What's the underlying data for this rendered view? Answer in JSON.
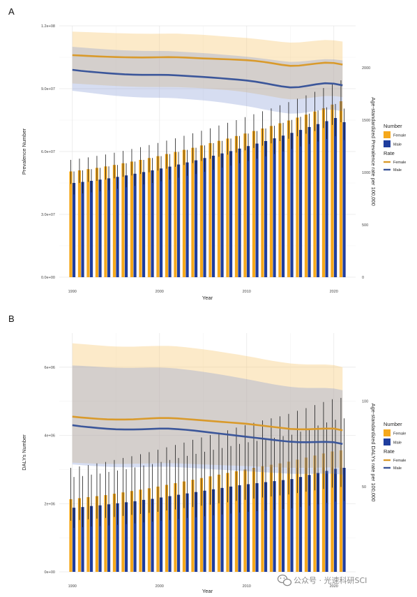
{
  "watermark": {
    "text": "公众号 · 光速科研SCI",
    "icon": "wechat-icon"
  },
  "colors": {
    "female_bar": "#F5A81C",
    "male_bar": "#1F3E9E",
    "female_line": "#D99A2B",
    "male_line": "#3B569A",
    "female_band": "#FCE3B0",
    "male_band": "#C9D3EC",
    "overlap_band": "#CFC6BC",
    "grid": "#E6E6E6",
    "errorbar": "#1A1A1A"
  },
  "chart_data": [
    {
      "panel": "A",
      "type": "bar+line",
      "xlabel": "Year",
      "ylabel": "Prevalence Number",
      "y2label": "Age-standardized Prevalence rate per 100,000",
      "x_ticks": [
        1990,
        2000,
        2010,
        2020
      ],
      "ylim": [
        0,
        120000000
      ],
      "y_ticks": [
        0,
        30000000,
        60000000,
        90000000,
        120000000
      ],
      "y_tick_labels": [
        "0.0e+00",
        "3.0e+07",
        "6.0e+07",
        "9.0e+07",
        "1.2e+08"
      ],
      "y2lim": [
        0,
        2400
      ],
      "y2_ticks": [
        0,
        500,
        1000,
        1500,
        2000
      ],
      "y2_tick_labels": [
        "0",
        "500",
        "1000",
        "1500",
        "2000"
      ],
      "years": [
        1990,
        1991,
        1992,
        1993,
        1994,
        1995,
        1996,
        1997,
        1998,
        1999,
        2000,
        2001,
        2002,
        2003,
        2004,
        2005,
        2006,
        2007,
        2008,
        2009,
        2010,
        2011,
        2012,
        2013,
        2014,
        2015,
        2016,
        2017,
        2018,
        2019,
        2020,
        2021
      ],
      "bars": [
        {
          "name": "Female",
          "values": [
            50500000,
            51000000,
            51600000,
            52200000,
            52900000,
            53600000,
            54400000,
            55200000,
            56000000,
            56900000,
            57800000,
            58800000,
            59800000,
            60800000,
            61800000,
            62900000,
            64000000,
            65100000,
            66200000,
            67400000,
            68600000,
            69800000,
            71000000,
            72200000,
            73500000,
            74800000,
            76200000,
            77600000,
            79100000,
            80700000,
            82400000,
            84000000
          ],
          "lower": [
            44500000,
            45000000,
            45500000,
            46000000,
            46600000,
            47200000,
            47900000,
            48600000,
            49300000,
            50100000,
            50900000,
            51800000,
            52700000,
            53600000,
            54500000,
            55500000,
            56500000,
            57500000,
            58500000,
            59500000,
            60600000,
            61700000,
            62800000,
            63900000,
            65000000,
            66100000,
            67300000,
            68500000,
            69800000,
            71200000,
            72700000,
            74000000
          ],
          "upper": [
            56000000,
            56600000,
            57200000,
            57900000,
            58600000,
            59400000,
            60300000,
            61200000,
            62100000,
            63100000,
            64100000,
            65200000,
            66300000,
            67500000,
            68700000,
            69900000,
            71100000,
            72400000,
            73700000,
            75000000,
            76400000,
            77800000,
            79200000,
            80600000,
            82100000,
            83600000,
            85200000,
            86800000,
            88500000,
            90300000,
            92200000,
            94000000
          ]
        },
        {
          "name": "Male",
          "values": [
            45000000,
            45500000,
            46000000,
            46600000,
            47200000,
            47900000,
            48600000,
            49400000,
            50200000,
            51000000,
            51900000,
            52800000,
            53800000,
            54800000,
            55800000,
            56900000,
            58000000,
            59100000,
            60200000,
            61400000,
            62600000,
            63800000,
            65000000,
            66300000,
            67600000,
            68900000,
            70300000,
            71700000,
            73100000,
            74500000,
            76000000,
            74000000
          ],
          "lower": [
            39500000,
            40000000,
            40500000,
            41000000,
            41600000,
            42200000,
            42900000,
            43600000,
            44300000,
            45000000,
            45800000,
            46600000,
            47500000,
            48400000,
            49300000,
            50300000,
            51300000,
            52300000,
            53300000,
            54400000,
            55500000,
            56600000,
            57700000,
            58800000,
            60000000,
            61200000,
            62400000,
            63600000,
            64800000,
            66000000,
            67300000,
            65500000
          ],
          "upper": [
            50500000,
            51000000,
            51600000,
            52200000,
            52900000,
            53600000,
            54400000,
            55200000,
            56000000,
            56900000,
            57800000,
            58800000,
            59800000,
            60800000,
            61800000,
            62900000,
            64000000,
            65100000,
            66200000,
            67400000,
            68600000,
            69800000,
            71000000,
            72300000,
            73700000,
            75100000,
            76600000,
            78100000,
            79600000,
            81100000,
            82700000,
            80500000
          ]
        }
      ],
      "lines": [
        {
          "name": "Female",
          "values": [
            2120,
            2116,
            2112,
            2108,
            2105,
            2102,
            2100,
            2099,
            2098,
            2099,
            2100,
            2101,
            2100,
            2097,
            2093,
            2089,
            2086,
            2083,
            2080,
            2076,
            2072,
            2065,
            2055,
            2042,
            2028,
            2018,
            2020,
            2030,
            2040,
            2048,
            2045,
            2030
          ],
          "lower": [
            1850,
            1845,
            1840,
            1835,
            1830,
            1826,
            1822,
            1819,
            1817,
            1816,
            1816,
            1816,
            1815,
            1812,
            1808,
            1803,
            1797,
            1791,
            1785,
            1776,
            1765,
            1752,
            1738,
            1723,
            1708,
            1698,
            1700,
            1710,
            1720,
            1730,
            1730,
            1720
          ],
          "upper": [
            2345,
            2342,
            2339,
            2336,
            2333,
            2330,
            2328,
            2326,
            2325,
            2324,
            2325,
            2326,
            2326,
            2322,
            2318,
            2314,
            2308,
            2302,
            2296,
            2290,
            2284,
            2276,
            2267,
            2257,
            2247,
            2240,
            2242,
            2250,
            2258,
            2265,
            2262,
            2250
          ]
        },
        {
          "name": "Male",
          "values": [
            1980,
            1970,
            1962,
            1955,
            1948,
            1942,
            1937,
            1934,
            1932,
            1932,
            1932,
            1931,
            1927,
            1922,
            1917,
            1912,
            1906,
            1900,
            1893,
            1886,
            1878,
            1867,
            1853,
            1837,
            1822,
            1812,
            1815,
            1828,
            1842,
            1852,
            1848,
            1832
          ],
          "lower": [
            1780,
            1770,
            1760,
            1750,
            1740,
            1732,
            1725,
            1720,
            1716,
            1714,
            1713,
            1712,
            1708,
            1702,
            1695,
            1688,
            1680,
            1670,
            1658,
            1646,
            1633,
            1618,
            1602,
            1586,
            1572,
            1562,
            1564,
            1575,
            1588,
            1600,
            1598,
            1585
          ],
          "upper": [
            2200,
            2193,
            2187,
            2181,
            2175,
            2170,
            2166,
            2163,
            2161,
            2160,
            2160,
            2159,
            2155,
            2150,
            2145,
            2140,
            2134,
            2127,
            2120,
            2113,
            2105,
            2096,
            2086,
            2075,
            2064,
            2056,
            2058,
            2066,
            2075,
            2082,
            2080,
            2070
          ]
        }
      ],
      "legend": {
        "number_title": "Number",
        "rate_title": "Rate",
        "labels": [
          "Female",
          "Male"
        ],
        "position": "right"
      }
    },
    {
      "panel": "B",
      "type": "bar+line",
      "xlabel": "Year",
      "ylabel": "DALYs Number",
      "y2label": "Age-standardized DALYs rate per 100,000",
      "x_ticks": [
        1990,
        2000,
        2010,
        2020
      ],
      "ylim": [
        0,
        7000000
      ],
      "y_ticks": [
        0,
        2000000,
        4000000,
        6000000
      ],
      "y_tick_labels": [
        "0e+00",
        "2e+06",
        "4e+06",
        "6e+06"
      ],
      "y2lim": [
        0,
        140
      ],
      "y2_ticks": [
        50,
        100
      ],
      "y2_tick_labels": [
        "50",
        "100"
      ],
      "years": [
        1990,
        1991,
        1992,
        1993,
        1994,
        1995,
        1996,
        1997,
        1998,
        1999,
        2000,
        2001,
        2002,
        2003,
        2004,
        2005,
        2006,
        2007,
        2008,
        2009,
        2010,
        2011,
        2012,
        2013,
        2014,
        2015,
        2016,
        2017,
        2018,
        2019,
        2020,
        2021
      ],
      "bars": [
        {
          "name": "Female",
          "values": [
            2130000,
            2160000,
            2190000,
            2220000,
            2250000,
            2290000,
            2330000,
            2370000,
            2410000,
            2450000,
            2500000,
            2550000,
            2600000,
            2650000,
            2700000,
            2750000,
            2800000,
            2850000,
            2900000,
            2950000,
            3000000,
            3050000,
            3100000,
            3140000,
            3180000,
            3230000,
            3290000,
            3350000,
            3410000,
            3470000,
            3530000,
            3560000
          ],
          "lower": [
            1500000,
            1520000,
            1540000,
            1560000,
            1580000,
            1610000,
            1640000,
            1670000,
            1700000,
            1730000,
            1760000,
            1800000,
            1830000,
            1870000,
            1900000,
            1940000,
            1970000,
            2010000,
            2040000,
            2080000,
            2110000,
            2150000,
            2180000,
            2210000,
            2240000,
            2270000,
            2310000,
            2350000,
            2390000,
            2430000,
            2470000,
            2490000
          ],
          "upper": [
            3050000,
            3090000,
            3130000,
            3180000,
            3220000,
            3280000,
            3340000,
            3390000,
            3450000,
            3510000,
            3580000,
            3650000,
            3720000,
            3790000,
            3870000,
            3940000,
            4010000,
            4080000,
            4150000,
            4230000,
            4300000,
            4370000,
            4440000,
            4500000,
            4560000,
            4630000,
            4720000,
            4800000,
            4890000,
            4980000,
            5060000,
            5100000
          ]
        },
        {
          "name": "Male",
          "values": [
            1880000,
            1900000,
            1930000,
            1950000,
            1980000,
            2010000,
            2040000,
            2070000,
            2110000,
            2140000,
            2180000,
            2220000,
            2260000,
            2300000,
            2340000,
            2380000,
            2420000,
            2460000,
            2500000,
            2540000,
            2570000,
            2600000,
            2630000,
            2660000,
            2690000,
            2720000,
            2780000,
            2840000,
            2900000,
            2960000,
            3020000,
            3050000
          ],
          "lower": [
            1290000,
            1310000,
            1330000,
            1340000,
            1360000,
            1380000,
            1400000,
            1420000,
            1450000,
            1470000,
            1500000,
            1520000,
            1550000,
            1580000,
            1600000,
            1630000,
            1660000,
            1680000,
            1710000,
            1740000,
            1760000,
            1780000,
            1800000,
            1820000,
            1840000,
            1860000,
            1900000,
            1940000,
            1980000,
            2020000,
            2060000,
            2080000
          ],
          "upper": [
            2780000,
            2810000,
            2850000,
            2880000,
            2930000,
            2970000,
            3010000,
            3060000,
            3120000,
            3160000,
            3220000,
            3280000,
            3340000,
            3400000,
            3460000,
            3520000,
            3580000,
            3630000,
            3690000,
            3750000,
            3800000,
            3840000,
            3890000,
            3930000,
            3980000,
            4020000,
            4110000,
            4200000,
            4290000,
            4380000,
            4460000,
            4500000
          ]
        }
      ],
      "lines": [
        {
          "name": "Female",
          "values": [
            91.0,
            90.5,
            90.1,
            89.7,
            89.4,
            89.3,
            89.3,
            89.4,
            89.7,
            90.0,
            90.2,
            90.2,
            90.0,
            89.6,
            89.2,
            88.8,
            88.4,
            88.0,
            87.6,
            87.2,
            86.8,
            86.2,
            85.6,
            85.0,
            84.4,
            83.8,
            83.6,
            83.6,
            83.8,
            84.0,
            84.0,
            83.0
          ],
          "lower": [
            64.0,
            63.8,
            63.6,
            63.4,
            63.3,
            63.3,
            63.3,
            63.4,
            63.5,
            63.6,
            63.7,
            63.7,
            63.6,
            63.4,
            63.2,
            63.0,
            62.8,
            62.6,
            62.4,
            62.2,
            62.0,
            61.8,
            61.6,
            61.4,
            61.2,
            61.0,
            61.0,
            61.0,
            61.1,
            61.2,
            61.2,
            61.0
          ],
          "upper": [
            134.0,
            133.6,
            133.2,
            132.8,
            132.4,
            132.1,
            132.0,
            132.0,
            132.2,
            132.4,
            132.5,
            132.5,
            132.2,
            131.7,
            131.1,
            130.5,
            129.8,
            129.0,
            128.2,
            127.4,
            126.5,
            125.6,
            124.6,
            123.7,
            122.9,
            122.2,
            121.8,
            121.6,
            121.6,
            121.6,
            121.2,
            120.0
          ]
        },
        {
          "name": "Male",
          "values": [
            86.0,
            85.3,
            84.8,
            84.3,
            83.9,
            83.6,
            83.5,
            83.5,
            83.6,
            83.8,
            84.0,
            84.0,
            83.7,
            83.3,
            82.8,
            82.2,
            81.6,
            81.0,
            80.4,
            79.8,
            79.2,
            78.6,
            78.0,
            77.4,
            76.8,
            76.3,
            76.0,
            76.0,
            76.1,
            76.2,
            76.0,
            75.0
          ],
          "lower": [
            63.0,
            62.6,
            62.2,
            61.9,
            61.6,
            61.4,
            61.3,
            61.3,
            61.4,
            61.5,
            61.6,
            61.6,
            61.4,
            61.1,
            60.8,
            60.5,
            60.2,
            59.9,
            59.6,
            59.3,
            59.0,
            58.7,
            58.4,
            58.1,
            57.8,
            57.5,
            57.4,
            57.4,
            57.5,
            57.6,
            57.5,
            57.0
          ],
          "upper": [
            121.0,
            120.8,
            120.5,
            120.2,
            119.9,
            119.7,
            119.6,
            119.6,
            119.7,
            119.8,
            119.8,
            119.6,
            119.2,
            118.6,
            118.0,
            117.3,
            116.5,
            115.7,
            114.8,
            113.9,
            113.0,
            112.0,
            111.0,
            110.0,
            109.2,
            108.5,
            108.0,
            107.8,
            107.8,
            107.8,
            107.5,
            106.5
          ]
        }
      ],
      "legend": {
        "number_title": "Number",
        "rate_title": "Rate",
        "labels": [
          "Female",
          "Male"
        ],
        "position": "right"
      }
    }
  ]
}
